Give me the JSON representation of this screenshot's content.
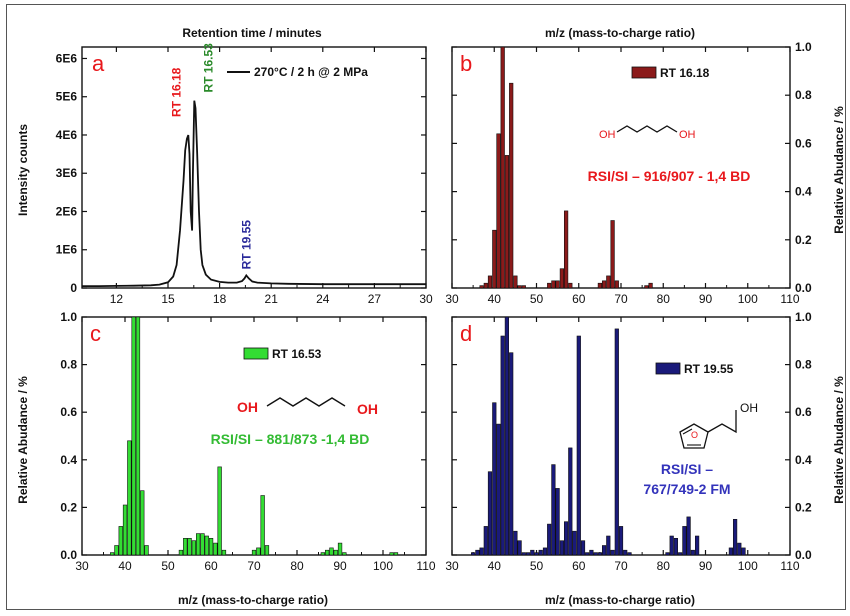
{
  "chart_data": [
    {
      "panel": "a",
      "type": "line",
      "top_axis_label": "Retention time / minutes",
      "ylabel": "Intensity counts",
      "xlim": [
        10,
        30
      ],
      "ylim": [
        0,
        6300000
      ],
      "xticks": [
        "12",
        "15",
        "18",
        "21",
        "24",
        "27",
        "30"
      ],
      "xtick_values": [
        12,
        15,
        18,
        21,
        24,
        27,
        30
      ],
      "yticks": [
        "0",
        "1E6",
        "2E6",
        "3E6",
        "4E6",
        "5E6",
        "6E6"
      ],
      "ytick_values": [
        0,
        1000000,
        2000000,
        3000000,
        4000000,
        5000000,
        6000000
      ],
      "legend": "270°C / 2 h @ 2 MPa",
      "annotations": [
        {
          "text": "RT 16.18",
          "color": "#e8181c"
        },
        {
          "text": "RT 16.53",
          "color": "#2a8a2a"
        },
        {
          "text": "RT 19.55",
          "color": "#2a2a9a"
        }
      ],
      "x": [
        10,
        11,
        12,
        13,
        14,
        14.5,
        15,
        15.3,
        15.5,
        15.7,
        15.9,
        16.0,
        16.1,
        16.18,
        16.25,
        16.32,
        16.4,
        16.45,
        16.53,
        16.6,
        16.7,
        16.8,
        16.9,
        17.0,
        17.2,
        17.5,
        18,
        18.5,
        19,
        19.3,
        19.45,
        19.55,
        19.7,
        19.9,
        20.2,
        21,
        22,
        24,
        26,
        28,
        30
      ],
      "y": [
        50000,
        50000,
        55000,
        60000,
        70000,
        90000,
        150000,
        300000,
        600000,
        1500000,
        2800000,
        3600000,
        3900000,
        4000000,
        3500000,
        2000000,
        1500000,
        3000000,
        4900000,
        4700000,
        3500000,
        2000000,
        1000000,
        600000,
        350000,
        220000,
        160000,
        140000,
        140000,
        180000,
        250000,
        330000,
        250000,
        170000,
        140000,
        120000,
        110000,
        100000,
        100000,
        100000,
        100000
      ]
    },
    {
      "panel": "b",
      "type": "bar",
      "top_axis_label": "m/z (mass-to-charge ratio)",
      "ylabel": "Relative Abudance / %",
      "xlim": [
        30,
        110
      ],
      "ylim": [
        0,
        1.0
      ],
      "xticks": [
        "30",
        "40",
        "50",
        "60",
        "70",
        "80",
        "90",
        "100",
        "110"
      ],
      "xtick_values": [
        30,
        40,
        50,
        60,
        70,
        80,
        90,
        100,
        110
      ],
      "yticks": [
        "0.0",
        "0.2",
        "0.4",
        "0.6",
        "0.8",
        "1.0"
      ],
      "ytick_values": [
        0,
        0.2,
        0.4,
        0.6,
        0.8,
        1.0
      ],
      "legend": "RT 16.18",
      "molecule_labels": [
        "OH",
        "OH"
      ],
      "caption": "RSI/SI – 916/907 - 1,4 BD",
      "color": "#8b1a1a",
      "x": [
        37,
        38,
        39,
        40,
        41,
        42,
        43,
        44,
        45,
        46,
        47,
        53,
        54,
        55,
        56,
        57,
        58,
        65,
        66,
        67,
        68,
        69,
        76,
        77
      ],
      "y": [
        0.01,
        0.02,
        0.05,
        0.24,
        0.64,
        1.0,
        0.55,
        0.85,
        0.05,
        0.01,
        0.01,
        0.02,
        0.03,
        0.03,
        0.08,
        0.32,
        0.02,
        0.02,
        0.03,
        0.05,
        0.28,
        0.03,
        0.01,
        0.02
      ]
    },
    {
      "panel": "c",
      "type": "bar",
      "ylabel": "Relative Abudance / %",
      "xlabel": "m/z (mass-to-charge ratio)",
      "xlim": [
        30,
        110
      ],
      "ylim": [
        0,
        1.0
      ],
      "xticks": [
        "30",
        "40",
        "50",
        "60",
        "70",
        "80",
        "90",
        "100",
        "110"
      ],
      "xtick_values": [
        30,
        40,
        50,
        60,
        70,
        80,
        90,
        100,
        110
      ],
      "yticks": [
        "0.0",
        "0.2",
        "0.4",
        "0.6",
        "0.8",
        "1.0"
      ],
      "ytick_values": [
        0,
        0.2,
        0.4,
        0.6,
        0.8,
        1.0
      ],
      "legend": "RT 16.53",
      "molecule_labels": [
        "OH",
        "OH"
      ],
      "caption": "RSI/SI – 881/873 -1,4 BD",
      "color": "#33dd33",
      "x": [
        37,
        38,
        39,
        40,
        41,
        42,
        43,
        44,
        45,
        53,
        54,
        55,
        56,
        57,
        58,
        59,
        60,
        61,
        62,
        63,
        70,
        71,
        72,
        73,
        86,
        87,
        88,
        89,
        90,
        91,
        102,
        103
      ],
      "y": [
        0.01,
        0.04,
        0.12,
        0.21,
        0.48,
        1.0,
        1.0,
        0.27,
        0.04,
        0.02,
        0.07,
        0.07,
        0.06,
        0.09,
        0.09,
        0.08,
        0.07,
        0.05,
        0.37,
        0.02,
        0.02,
        0.03,
        0.25,
        0.04,
        0.01,
        0.02,
        0.03,
        0.02,
        0.05,
        0.01,
        0.01,
        0.01
      ]
    },
    {
      "panel": "d",
      "type": "bar",
      "ylabel": "Relative Abudance / %",
      "xlabel": "m/z (mass-to-charge ratio)",
      "xlim": [
        30,
        110
      ],
      "ylim": [
        0,
        1.0
      ],
      "xticks": [
        "30",
        "40",
        "50",
        "60",
        "70",
        "80",
        "90",
        "100",
        "110"
      ],
      "xtick_values": [
        30,
        40,
        50,
        60,
        70,
        80,
        90,
        100,
        110
      ],
      "yticks": [
        "0.0",
        "0.2",
        "0.4",
        "0.6",
        "0.8",
        "1.0"
      ],
      "ytick_values": [
        0,
        0.2,
        0.4,
        0.6,
        0.8,
        1.0
      ],
      "legend": "RT 19.55",
      "molecule_labels": [
        "OH"
      ],
      "caption": [
        "RSI/SI –",
        "767/749-2 FM"
      ],
      "color": "#1a1a7a",
      "x": [
        35,
        36,
        37,
        38,
        39,
        40,
        41,
        42,
        43,
        44,
        45,
        46,
        47,
        48,
        49,
        50,
        51,
        52,
        53,
        54,
        55,
        56,
        57,
        58,
        59,
        60,
        61,
        62,
        63,
        64,
        65,
        66,
        67,
        68,
        69,
        70,
        71,
        72,
        81,
        82,
        83,
        84,
        85,
        86,
        87,
        88,
        96,
        97,
        98,
        99
      ],
      "y": [
        0.01,
        0.02,
        0.03,
        0.12,
        0.35,
        0.64,
        0.55,
        0.92,
        1.0,
        0.85,
        0.1,
        0.06,
        0.01,
        0.01,
        0.02,
        0.01,
        0.02,
        0.03,
        0.13,
        0.38,
        0.28,
        0.06,
        0.14,
        0.45,
        0.1,
        0.92,
        0.06,
        0.01,
        0.02,
        0.01,
        0.01,
        0.04,
        0.08,
        0.02,
        0.95,
        0.12,
        0.02,
        0.01,
        0.01,
        0.08,
        0.07,
        0.01,
        0.12,
        0.16,
        0.02,
        0.08,
        0.03,
        0.15,
        0.05,
        0.03
      ]
    }
  ]
}
